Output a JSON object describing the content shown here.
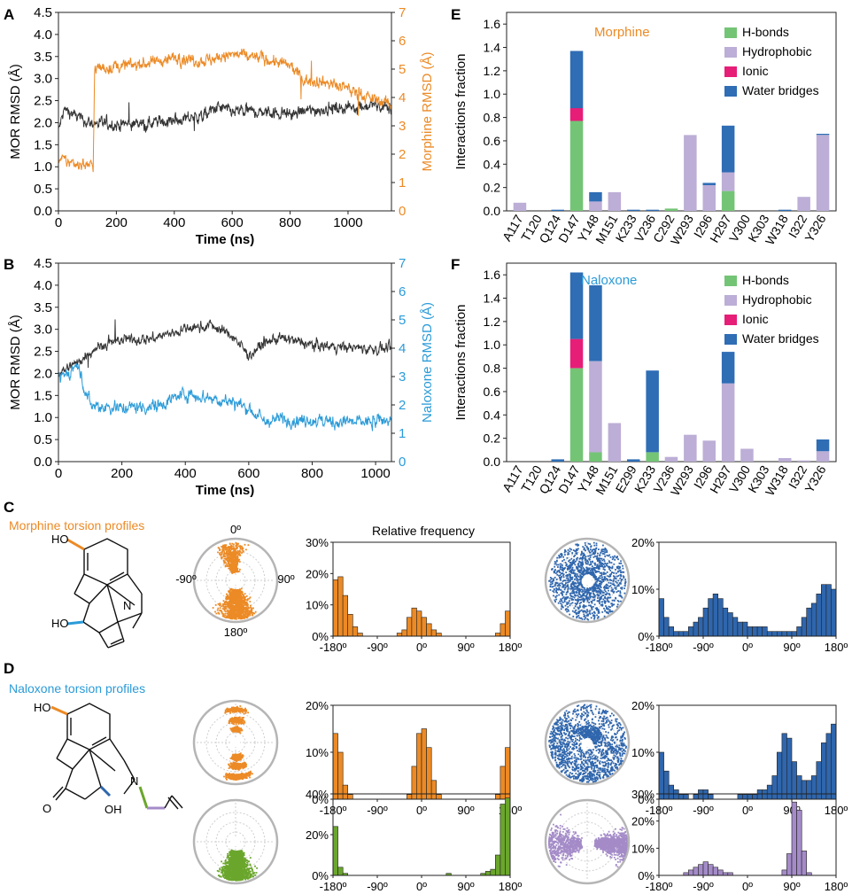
{
  "colors": {
    "morphine": "#ec8a25",
    "naloxone": "#2b9bd8",
    "mor": "#333333",
    "hbond": "#74c476",
    "hydrophobic": "#bcaed6",
    "ionic": "#e61e78",
    "water": "#2f6db5",
    "tor_blue": "#2f66ad",
    "tor_green": "#6aa62c",
    "tor_purple": "#a48bc8"
  },
  "panels": {
    "A": {
      "label": "A",
      "xlabel": "Time (ns)",
      "ylabel_left": "MOR RMSD (Å)",
      "ylabel_right": "Morphine RMSD (Å)"
    },
    "B": {
      "label": "B",
      "xlabel": "Time (ns)",
      "ylabel_left": "MOR RMSD (Å)",
      "ylabel_right": "Naloxone RMSD (Å)"
    },
    "C": {
      "label": "C",
      "title": "Morphine torsion profiles",
      "hist_title": "Relative frequency"
    },
    "D": {
      "label": "D",
      "title": "Naloxone torsion profiles"
    },
    "E": {
      "label": "E",
      "title": "Morphine",
      "ylabel": "Interactions fraction"
    },
    "F": {
      "label": "F",
      "title": "Naloxone",
      "ylabel": "Interactions fraction"
    }
  },
  "legend": [
    "H-bonds",
    "Hydrophobic",
    "Ionic",
    "Water bridges"
  ],
  "polar_labels": {
    "top": "0º",
    "left": "-90º",
    "right": "90º",
    "bottom": "180º"
  },
  "molecules": {
    "morphine": {
      "ho_top": "HO",
      "ho_bottom": "HO",
      "n": "N"
    },
    "naloxone": {
      "ho_top": "HO",
      "o": "O",
      "oh": "OH",
      "n": "N"
    }
  },
  "chart_data": [
    {
      "id": "A",
      "type": "line",
      "title": "",
      "xlabel": "Time (ns)",
      "xlim": [
        0,
        1150
      ],
      "xticks": [
        0,
        200,
        400,
        600,
        800,
        1000
      ],
      "ylabel": "MOR RMSD (Å)",
      "ylim": [
        0,
        4.5
      ],
      "yticks": [
        "0.0",
        "0.5",
        "1.0",
        "1.5",
        "2.0",
        "2.5",
        "3.0",
        "3.5",
        "4.0",
        "4.5"
      ],
      "y2label": "Morphine RMSD (Å)",
      "y2lim": [
        0,
        7
      ],
      "y2ticks": [
        "0",
        "1",
        "2",
        "3",
        "4",
        "5",
        "6",
        "7"
      ],
      "series": [
        {
          "name": "MOR",
          "axis": "left",
          "color": "#333333",
          "knots": [
            [
              0,
              1.8
            ],
            [
              20,
              2.3
            ],
            [
              100,
              2.0
            ],
            [
              200,
              1.95
            ],
            [
              300,
              2.0
            ],
            [
              400,
              2.05
            ],
            [
              500,
              2.15
            ],
            [
              550,
              2.35
            ],
            [
              600,
              2.25
            ],
            [
              700,
              2.25
            ],
            [
              800,
              2.2
            ],
            [
              900,
              2.3
            ],
            [
              1000,
              2.35
            ],
            [
              1100,
              2.4
            ],
            [
              1150,
              2.3
            ]
          ],
          "noise": 0.12
        },
        {
          "name": "Morphine",
          "axis": "right",
          "color": "#ec8a25",
          "knots": [
            [
              0,
              1.8
            ],
            [
              50,
              1.7
            ],
            [
              120,
              1.6
            ],
            [
              125,
              5.0
            ],
            [
              200,
              5.1
            ],
            [
              300,
              5.2
            ],
            [
              400,
              5.4
            ],
            [
              500,
              5.3
            ],
            [
              600,
              5.5
            ],
            [
              700,
              5.4
            ],
            [
              800,
              5.1
            ],
            [
              850,
              4.6
            ],
            [
              900,
              4.6
            ],
            [
              1000,
              4.3
            ],
            [
              1100,
              3.9
            ],
            [
              1150,
              3.8
            ]
          ],
          "noise": 0.18
        }
      ]
    },
    {
      "id": "B",
      "type": "line",
      "title": "",
      "xlabel": "Time (ns)",
      "xlim": [
        0,
        1050
      ],
      "xticks": [
        0,
        200,
        400,
        600,
        800,
        1000
      ],
      "ylabel": "MOR RMSD (Å)",
      "ylim": [
        0,
        4.5
      ],
      "yticks": [
        "0.0",
        "0.5",
        "1.0",
        "1.5",
        "2.0",
        "2.5",
        "3.0",
        "3.5",
        "4.0",
        "4.5"
      ],
      "y2label": "Naloxone RMSD (Å)",
      "y2lim": [
        0,
        7
      ],
      "y2ticks": [
        "0",
        "1",
        "2",
        "3",
        "4",
        "5",
        "6",
        "7"
      ],
      "series": [
        {
          "name": "MOR",
          "axis": "left",
          "color": "#333333",
          "knots": [
            [
              0,
              2.0
            ],
            [
              50,
              2.2
            ],
            [
              120,
              2.6
            ],
            [
              200,
              2.75
            ],
            [
              300,
              2.8
            ],
            [
              400,
              3.0
            ],
            [
              480,
              3.1
            ],
            [
              550,
              2.85
            ],
            [
              600,
              2.4
            ],
            [
              650,
              2.7
            ],
            [
              700,
              2.8
            ],
            [
              800,
              2.65
            ],
            [
              900,
              2.6
            ],
            [
              1000,
              2.55
            ],
            [
              1050,
              2.55
            ]
          ],
          "noise": 0.1
        },
        {
          "name": "Naloxone",
          "axis": "right",
          "color": "#2b9bd8",
          "knots": [
            [
              0,
              2.9
            ],
            [
              60,
              3.4
            ],
            [
              100,
              2.0
            ],
            [
              200,
              1.9
            ],
            [
              300,
              1.95
            ],
            [
              400,
              2.4
            ],
            [
              450,
              2.3
            ],
            [
              550,
              2.1
            ],
            [
              600,
              1.9
            ],
            [
              650,
              1.4
            ],
            [
              700,
              1.5
            ],
            [
              800,
              1.45
            ],
            [
              900,
              1.4
            ],
            [
              1000,
              1.4
            ],
            [
              1050,
              1.5
            ]
          ],
          "noise": 0.2
        }
      ]
    },
    {
      "id": "E",
      "type": "bar",
      "stacked": true,
      "title": "Morphine",
      "xlabel": "",
      "ylabel": "Interactions fraction",
      "ylim": [
        0,
        1.7
      ],
      "yticks": [
        "0.0",
        "0.2",
        "0.4",
        "0.6",
        "0.8",
        "1.0",
        "1.2",
        "1.4",
        "1.6"
      ],
      "categories": [
        "A117",
        "T120",
        "Q124",
        "D147",
        "Y148",
        "M151",
        "K233",
        "V236",
        "C292",
        "W293",
        "I296",
        "H297",
        "V300",
        "K303",
        "W318",
        "I322",
        "Y326"
      ],
      "series": [
        {
          "name": "H-bonds",
          "values": [
            0,
            0,
            0,
            0.77,
            0,
            0,
            0,
            0,
            0.02,
            0,
            0,
            0.17,
            0,
            0,
            0,
            0,
            0
          ]
        },
        {
          "name": "Hydrophobic",
          "values": [
            0.07,
            0,
            0,
            0,
            0.08,
            0.16,
            0,
            0,
            0,
            0.65,
            0.22,
            0.16,
            0,
            0,
            0,
            0.12,
            0.65
          ]
        },
        {
          "name": "Ionic",
          "values": [
            0,
            0,
            0,
            0.11,
            0,
            0,
            0,
            0,
            0,
            0,
            0,
            0,
            0,
            0,
            0,
            0,
            0
          ]
        },
        {
          "name": "Water bridges",
          "values": [
            0,
            0,
            0.01,
            0.49,
            0.08,
            0,
            0.01,
            0.01,
            0,
            0,
            0.02,
            0.4,
            0,
            0,
            0.01,
            0,
            0.01
          ]
        }
      ]
    },
    {
      "id": "F",
      "type": "bar",
      "stacked": true,
      "title": "Naloxone",
      "xlabel": "",
      "ylabel": "Interactions fraction",
      "ylim": [
        0,
        1.7
      ],
      "yticks": [
        "0.0",
        "0.2",
        "0.4",
        "0.6",
        "0.8",
        "1.0",
        "1.2",
        "1.4",
        "1.6"
      ],
      "categories": [
        "A117",
        "T120",
        "Q124",
        "D147",
        "Y148",
        "M151",
        "E299",
        "K233",
        "V236",
        "W293",
        "I296",
        "H297",
        "V300",
        "K303",
        "W318",
        "I322",
        "Y326"
      ],
      "series": [
        {
          "name": "H-bonds",
          "values": [
            0,
            0,
            0,
            0.8,
            0.08,
            0,
            0,
            0.08,
            0,
            0,
            0,
            0,
            0,
            0,
            0,
            0,
            0
          ]
        },
        {
          "name": "Hydrophobic",
          "values": [
            0,
            0,
            0,
            0,
            0.78,
            0.33,
            0,
            0,
            0.04,
            0.23,
            0.18,
            0.67,
            0.11,
            0,
            0.03,
            0.01,
            0.09
          ]
        },
        {
          "name": "Ionic",
          "values": [
            0,
            0,
            0,
            0.25,
            0,
            0,
            0,
            0,
            0,
            0,
            0,
            0,
            0,
            0,
            0,
            0,
            0
          ]
        },
        {
          "name": "Water bridges",
          "values": [
            0,
            0,
            0.02,
            0.57,
            0.65,
            0,
            0.02,
            0.7,
            0,
            0,
            0,
            0.27,
            0,
            0,
            0,
            0,
            0.1
          ]
        }
      ]
    },
    {
      "id": "C-hist-1",
      "type": "bar",
      "title": "Relative frequency",
      "color": "#ec8a25",
      "xticks": [
        "-180º",
        "-90º",
        "0º",
        "90º",
        "180º"
      ],
      "yticks": [
        "0%",
        "10%",
        "20%",
        "30%"
      ],
      "ylim": [
        0,
        30
      ],
      "values": [
        [
          -175,
          18
        ],
        [
          -165,
          19
        ],
        [
          -155,
          13
        ],
        [
          -145,
          7
        ],
        [
          -135,
          3
        ],
        [
          -125,
          1
        ],
        [
          -45,
          1
        ],
        [
          -35,
          2
        ],
        [
          -25,
          6
        ],
        [
          -15,
          9
        ],
        [
          -5,
          8
        ],
        [
          5,
          6
        ],
        [
          15,
          4
        ],
        [
          25,
          2
        ],
        [
          35,
          1
        ],
        [
          155,
          1
        ],
        [
          165,
          4
        ],
        [
          175,
          8
        ]
      ]
    },
    {
      "id": "C-hist-2",
      "type": "bar",
      "color": "#2f66ad",
      "xticks": [
        "-180º",
        "-90º",
        "0º",
        "90º",
        "180º"
      ],
      "yticks": [
        "0%",
        "10%",
        "20%"
      ],
      "ylim": [
        0,
        20
      ],
      "values": [
        [
          -175,
          8
        ],
        [
          -165,
          4
        ],
        [
          -155,
          2
        ],
        [
          -145,
          1
        ],
        [
          -135,
          1
        ],
        [
          -125,
          1
        ],
        [
          -115,
          2
        ],
        [
          -105,
          3
        ],
        [
          -95,
          4
        ],
        [
          -85,
          6
        ],
        [
          -75,
          8
        ],
        [
          -65,
          9
        ],
        [
          -55,
          8
        ],
        [
          -45,
          6
        ],
        [
          -35,
          5
        ],
        [
          -25,
          4
        ],
        [
          -15,
          3
        ],
        [
          -5,
          3
        ],
        [
          5,
          2
        ],
        [
          15,
          2
        ],
        [
          25,
          2
        ],
        [
          35,
          2
        ],
        [
          45,
          1
        ],
        [
          55,
          1
        ],
        [
          65,
          1
        ],
        [
          75,
          1
        ],
        [
          85,
          1
        ],
        [
          95,
          1
        ],
        [
          105,
          2
        ],
        [
          115,
          4
        ],
        [
          125,
          6
        ],
        [
          135,
          7
        ],
        [
          145,
          9
        ],
        [
          155,
          11
        ],
        [
          165,
          11
        ],
        [
          175,
          10
        ]
      ]
    },
    {
      "id": "D-hist-1",
      "type": "bar",
      "color": "#ec8a25",
      "xticks": [
        "-180º",
        "-90º",
        "0º",
        "90º",
        "180º"
      ],
      "yticks": [
        "0%",
        "10%",
        "20%"
      ],
      "ylim": [
        0,
        20
      ],
      "values": [
        [
          -175,
          14
        ],
        [
          -165,
          10
        ],
        [
          -155,
          3
        ],
        [
          -145,
          1
        ],
        [
          -25,
          1
        ],
        [
          -15,
          7
        ],
        [
          -5,
          14
        ],
        [
          5,
          15
        ],
        [
          15,
          11
        ],
        [
          25,
          4
        ],
        [
          35,
          1
        ],
        [
          155,
          1
        ],
        [
          165,
          7
        ],
        [
          175,
          11
        ]
      ]
    },
    {
      "id": "D-hist-2",
      "type": "bar",
      "color": "#2f66ad",
      "xticks": [
        "-180º",
        "-90º",
        "0º",
        "90º",
        "180º"
      ],
      "yticks": [
        "0%",
        "10%",
        "20%"
      ],
      "ylim": [
        0,
        20
      ],
      "values": [
        [
          -175,
          10
        ],
        [
          -165,
          6
        ],
        [
          -155,
          3
        ],
        [
          -145,
          2
        ],
        [
          -135,
          1
        ],
        [
          -125,
          1
        ],
        [
          -105,
          1
        ],
        [
          -95,
          2
        ],
        [
          -85,
          2
        ],
        [
          -75,
          1
        ],
        [
          -15,
          1
        ],
        [
          -5,
          1
        ],
        [
          5,
          1
        ],
        [
          15,
          1
        ],
        [
          25,
          2
        ],
        [
          35,
          2
        ],
        [
          45,
          3
        ],
        [
          55,
          5
        ],
        [
          65,
          10
        ],
        [
          75,
          14
        ],
        [
          85,
          13
        ],
        [
          95,
          8
        ],
        [
          105,
          5
        ],
        [
          115,
          4
        ],
        [
          125,
          4
        ],
        [
          135,
          5
        ],
        [
          145,
          8
        ],
        [
          155,
          12
        ],
        [
          165,
          14
        ],
        [
          175,
          16
        ]
      ]
    },
    {
      "id": "D-hist-3",
      "type": "bar",
      "color": "#6aa62c",
      "xticks": [
        "-180º",
        "-90º",
        "0º",
        "90º",
        "180º"
      ],
      "yticks": [
        "0%",
        "20%",
        "40%"
      ],
      "ylim": [
        0,
        40
      ],
      "values": [
        [
          -175,
          24
        ],
        [
          -165,
          4
        ],
        [
          -155,
          1
        ],
        [
          55,
          1
        ],
        [
          125,
          1
        ],
        [
          135,
          2
        ],
        [
          145,
          3
        ],
        [
          155,
          10
        ],
        [
          165,
          35
        ],
        [
          175,
          38
        ]
      ]
    },
    {
      "id": "D-hist-4",
      "type": "bar",
      "color": "#a48bc8",
      "xticks": [
        "-180º",
        "-90º",
        "0º",
        "90º",
        "180º"
      ],
      "yticks": [
        "0%",
        "10%",
        "20%",
        "30%"
      ],
      "ylim": [
        0,
        30
      ],
      "values": [
        [
          -125,
          1
        ],
        [
          -115,
          2
        ],
        [
          -105,
          3
        ],
        [
          -95,
          4
        ],
        [
          -85,
          5
        ],
        [
          -75,
          4
        ],
        [
          -65,
          3
        ],
        [
          -55,
          2
        ],
        [
          -45,
          1
        ],
        [
          -35,
          1
        ],
        [
          75,
          2
        ],
        [
          85,
          8
        ],
        [
          95,
          27
        ],
        [
          105,
          24
        ],
        [
          115,
          9
        ],
        [
          125,
          1
        ]
      ]
    }
  ]
}
